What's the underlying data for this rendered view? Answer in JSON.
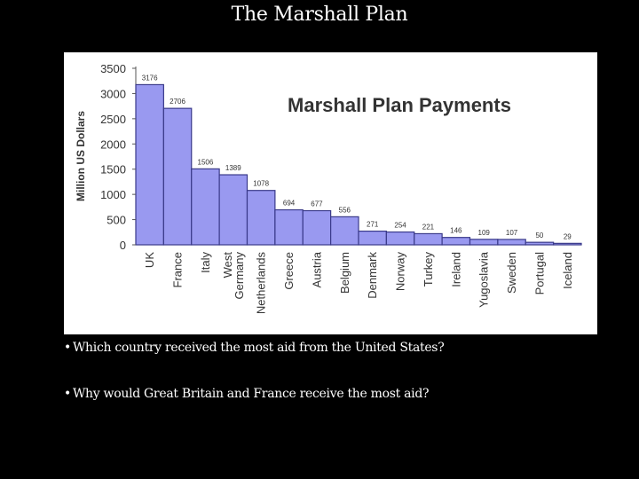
{
  "slide": {
    "title": "The Marshall Plan",
    "bullets": [
      "Which country received the most aid from the United States?",
      "Why would Great Britain and France receive the most aid?"
    ]
  },
  "colors": {
    "background": "#000000",
    "text": "#ffffff",
    "chart_background": "#ffffff",
    "bar_fill": "#9999f0",
    "bar_stroke": "#3a3a8a"
  },
  "chart_data": {
    "type": "bar",
    "title": "Marshall Plan Payments",
    "ylabel": "Million US Dollars",
    "xlabel": "",
    "ylim": [
      0,
      3500
    ],
    "yticks": [
      "3500",
      "3000",
      "2500",
      "2000",
      "1500",
      "1000",
      "500",
      "0"
    ],
    "categories": [
      "UK",
      "France",
      "Italy",
      "West Germany",
      "Netherlands",
      "Greece",
      "Austria",
      "Belgium",
      "Denmark",
      "Norway",
      "Turkey",
      "Ireland",
      "Yugoslavia",
      "Sweden",
      "Portugal",
      "Iceland"
    ],
    "category_lines": [
      [
        "UK"
      ],
      [
        "France"
      ],
      [
        "Italy"
      ],
      [
        "West",
        "Germany"
      ],
      [
        "Netherlands"
      ],
      [
        "Greece"
      ],
      [
        "Austria"
      ],
      [
        "Belgium"
      ],
      [
        "Denmark"
      ],
      [
        "Norway"
      ],
      [
        "Turkey"
      ],
      [
        "Ireland"
      ],
      [
        "Yugoslavia"
      ],
      [
        "Sweden"
      ],
      [
        "Portugal"
      ],
      [
        "Iceland"
      ]
    ],
    "values": [
      3176,
      2706,
      1506,
      1389,
      1078,
      694,
      677,
      556,
      271,
      254,
      221,
      146,
      109,
      107,
      50,
      29
    ],
    "value_labels": [
      "3176",
      "2706",
      "1506",
      "1389",
      "1078",
      "694",
      "677",
      "556",
      "271",
      "254",
      "221",
      "146",
      "109",
      "107",
      "50",
      "29"
    ],
    "grid": false,
    "legend": "none"
  }
}
